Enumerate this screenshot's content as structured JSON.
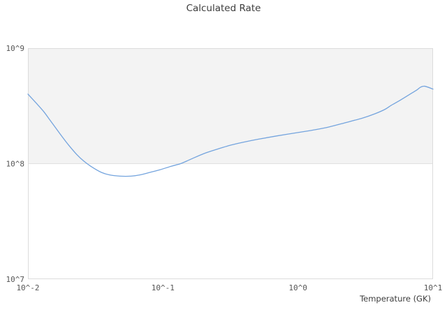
{
  "chart_data": {
    "type": "line",
    "title": "Calculated Rate",
    "xlabel": "Temperature (GK)",
    "ylabel": "",
    "x_scale": "log",
    "y_scale": "log",
    "xlim": [
      0.01,
      10
    ],
    "ylim": [
      10000000.0,
      1000000000.0
    ],
    "x_ticks": [
      {
        "value": 0.01,
        "label": "10^-2"
      },
      {
        "value": 0.1,
        "label": "10^-1"
      },
      {
        "value": 1,
        "label": "10^0"
      },
      {
        "value": 10,
        "label": "10^1"
      }
    ],
    "y_ticks": [
      {
        "value": 10000000.0,
        "label": "10^7"
      },
      {
        "value": 100000000.0,
        "label": "10^8"
      },
      {
        "value": 1000000000.0,
        "label": "10^9"
      }
    ],
    "y_gridlines": [
      100000000.0
    ],
    "shaded_band": {
      "from": 100000000.0,
      "to": 1000000000.0,
      "color": "#f3f3f3"
    },
    "grid_color": "#e0e0e0",
    "frame_color": "#dcdcdc",
    "legend": "none",
    "series": [
      {
        "name": "calculated-rate",
        "color": "#74a4de",
        "x": [
          0.01,
          0.0115,
          0.013,
          0.0145,
          0.016,
          0.018,
          0.02,
          0.023,
          0.026,
          0.03,
          0.035,
          0.04,
          0.048,
          0.058,
          0.068,
          0.08,
          0.095,
          0.115,
          0.135,
          0.16,
          0.2,
          0.25,
          0.32,
          0.4,
          0.51,
          0.7,
          1.0,
          1.35,
          1.7,
          2.2,
          3.0,
          3.7,
          4.4,
          4.9,
          5.5,
          6.3,
          7.0,
          7.6,
          8.1,
          8.7,
          10.0
        ],
        "y": [
          400000000.0,
          335000000.0,
          285000000.0,
          240000000.0,
          205000000.0,
          170000000.0,
          145000000.0,
          120000000.0,
          105000000.0,
          93000000.0,
          84000000.0,
          80000000.0,
          78000000.0,
          78000000.0,
          80000000.0,
          84000000.0,
          88500000.0,
          95000000.0,
          100000000.0,
          109000000.0,
          122000000.0,
          133000000.0,
          145000000.0,
          154000000.0,
          163000000.0,
          174000000.0,
          186000000.0,
          197000000.0,
          208000000.0,
          225000000.0,
          248000000.0,
          270000000.0,
          295000000.0,
          320000000.0,
          345000000.0,
          380000000.0,
          410000000.0,
          435000000.0,
          460000000.0,
          468000000.0,
          442000000.0
        ]
      }
    ]
  }
}
